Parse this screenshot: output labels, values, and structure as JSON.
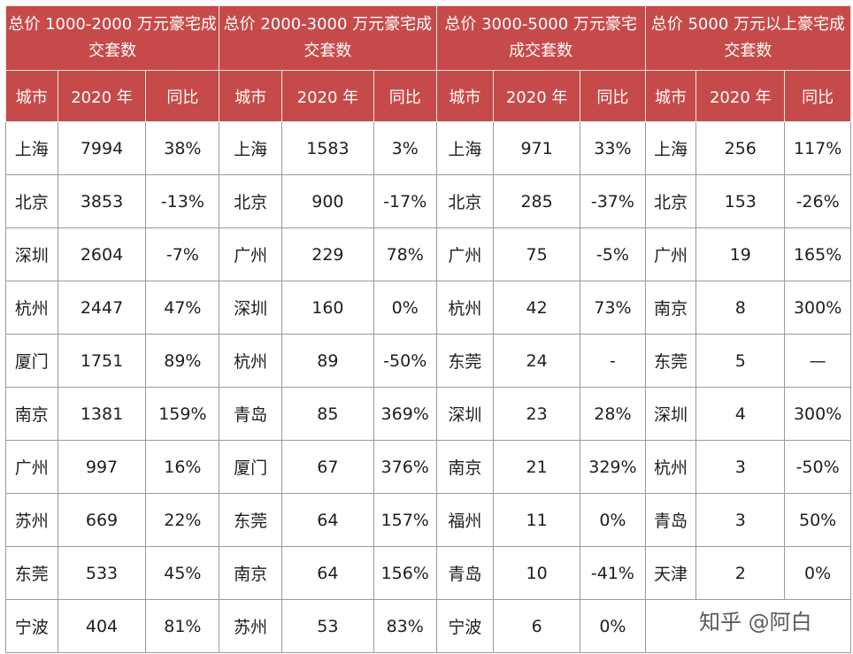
{
  "groups": [
    "总价 1000-2000 万元豪宅成交套数",
    "总价 2000-3000 万元豪宅成交套数",
    "总价 3000-5000 万元豪宅成交套数",
    "总价 5000 万元以上豪宅成交套数"
  ],
  "sub_headers": [
    "城市",
    "2020 年",
    "同比"
  ],
  "rows": [
    [
      [
        "上海",
        "7994",
        "38%"
      ],
      [
        "上海",
        "1583",
        "3%"
      ],
      [
        "上海",
        "971",
        "33%"
      ],
      [
        "上海",
        "256",
        "117%"
      ]
    ],
    [
      [
        "北京",
        "3853",
        "-13%"
      ],
      [
        "北京",
        "900",
        "-17%"
      ],
      [
        "北京",
        "285",
        "-37%"
      ],
      [
        "北京",
        "153",
        "-26%"
      ]
    ],
    [
      [
        "深圳",
        "2604",
        "-7%"
      ],
      [
        "广州",
        "229",
        "78%"
      ],
      [
        "广州",
        "75",
        "-5%"
      ],
      [
        "广州",
        "19",
        "165%"
      ]
    ],
    [
      [
        "杭州",
        "2447",
        "47%"
      ],
      [
        "深圳",
        "160",
        "0%"
      ],
      [
        "杭州",
        "42",
        "73%"
      ],
      [
        "南京",
        "8",
        "300%"
      ]
    ],
    [
      [
        "厦门",
        "1751",
        "89%"
      ],
      [
        "杭州",
        "89",
        "-50%"
      ],
      [
        "东莞",
        "24",
        "-"
      ],
      [
        "东莞",
        "5",
        "—"
      ]
    ],
    [
      [
        "南京",
        "1381",
        "159%"
      ],
      [
        "青岛",
        "85",
        "369%"
      ],
      [
        "深圳",
        "23",
        "28%"
      ],
      [
        "深圳",
        "4",
        "300%"
      ]
    ],
    [
      [
        "广州",
        "997",
        "16%"
      ],
      [
        "厦门",
        "67",
        "376%"
      ],
      [
        "南京",
        "21",
        "329%"
      ],
      [
        "杭州",
        "3",
        "-50%"
      ]
    ],
    [
      [
        "苏州",
        "669",
        "22%"
      ],
      [
        "东莞",
        "64",
        "157%"
      ],
      [
        "福州",
        "11",
        "0%"
      ],
      [
        "青岛",
        "3",
        "50%"
      ]
    ],
    [
      [
        "东莞",
        "533",
        "45%"
      ],
      [
        "南京",
        "64",
        "156%"
      ],
      [
        "青岛",
        "10",
        "-41%"
      ],
      [
        "天津",
        "2",
        "0%"
      ]
    ],
    [
      [
        "宁波",
        "404",
        "81%"
      ],
      [
        "苏州",
        "53",
        "83%"
      ],
      [
        "宁波",
        "6",
        "0%"
      ],
      null
    ]
  ],
  "watermark": "知乎 @阿白",
  "colors": {
    "header_bg": "#c74a4a",
    "header_text": "#ffffff",
    "border": "#9a9a9a"
  }
}
